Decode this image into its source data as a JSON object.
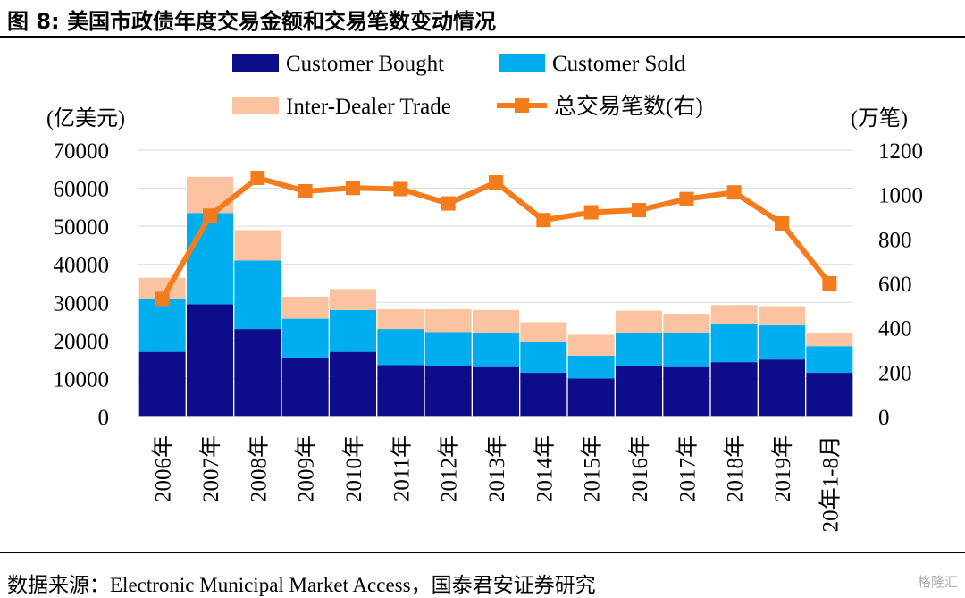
{
  "figure": {
    "title": "图 8:  美国市政债年度交易金额和交易笔数变动情况",
    "source": "数据来源：Electronic Municipal Market Access，国泰君安证券研究",
    "watermark": "格隆汇"
  },
  "chart_data": {
    "type": "bar",
    "stacked": true,
    "left_unit": "(亿美元)",
    "right_unit": "(万笔)",
    "categories": [
      "2006年",
      "2007年",
      "2008年",
      "2009年",
      "2010年",
      "2011年",
      "2012年",
      "2013年",
      "2014年",
      "2015年",
      "2016年",
      "2017年",
      "2018年",
      "2019年",
      "20年1-8月"
    ],
    "series": [
      {
        "name": "Customer Bought",
        "type": "bar",
        "axis": "left",
        "color": "#0d0d8c",
        "values": [
          17000,
          29500,
          23000,
          15500,
          17000,
          13500,
          13200,
          13000,
          11500,
          10000,
          13200,
          13000,
          14300,
          15000,
          11500
        ]
      },
      {
        "name": "Customer Sold",
        "type": "bar",
        "axis": "left",
        "color": "#00aeef",
        "values": [
          14000,
          24000,
          18000,
          10200,
          11000,
          9500,
          9000,
          9000,
          8000,
          6000,
          8800,
          9000,
          10000,
          9000,
          7000
        ]
      },
      {
        "name": "Inter-Dealer Trade",
        "type": "bar",
        "axis": "left",
        "color": "#fcc3a0",
        "values": [
          5500,
          9500,
          8000,
          5800,
          5500,
          5200,
          6000,
          6000,
          5300,
          5500,
          5800,
          5000,
          5000,
          5000,
          3500
        ]
      },
      {
        "name": "总交易笔数(右)",
        "type": "line",
        "axis": "right",
        "color": "#f47c1c",
        "values": [
          530,
          905,
          1075,
          1015,
          1030,
          1025,
          960,
          1055,
          885,
          920,
          930,
          980,
          1010,
          870,
          600
        ]
      }
    ],
    "left_ticks": [
      "70000",
      "60000",
      "50000",
      "40000",
      "30000",
      "20000",
      "10000",
      "0"
    ],
    "right_ticks": [
      "1200",
      "1000",
      "800",
      "600",
      "400",
      "200",
      "0"
    ],
    "ylim_left": [
      0,
      70000
    ],
    "ylim_right": [
      0,
      1200
    ],
    "grid": true,
    "legend_position": "top"
  }
}
